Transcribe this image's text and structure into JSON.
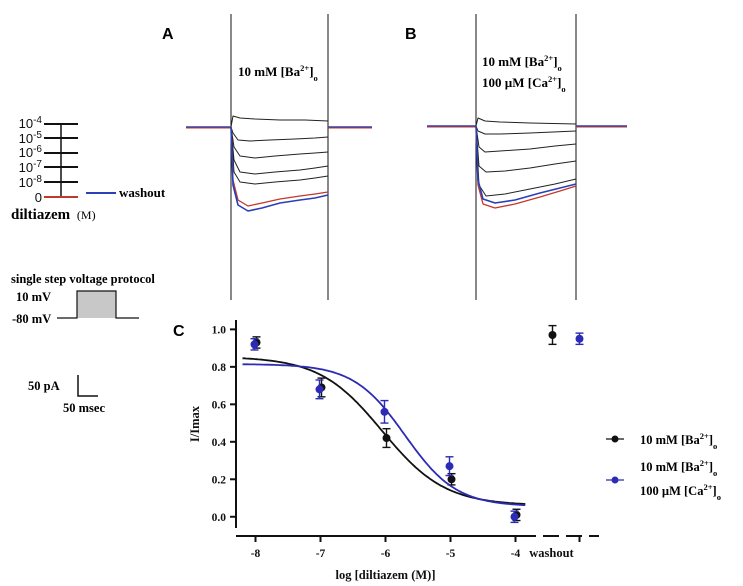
{
  "figure": {
    "panel_labels": {
      "a": "A",
      "b": "B",
      "c": "C"
    },
    "panel_a": {
      "condition_line1": "10 mM [Ba2+]o"
    },
    "panel_b": {
      "condition_line1": "10 mM [Ba2+]o",
      "condition_line2": "100 µM [Ca2+]o"
    },
    "dose_legend": {
      "concentrations": [
        "10-4",
        "10-5",
        "10-6",
        "10-7",
        "10-8",
        "0"
      ],
      "washout_label": "washout",
      "axis_title": "diltiazem",
      "axis_unit": "(M)"
    },
    "protocol": {
      "title": "single step voltage protocol",
      "step_voltage": "10 mV",
      "holding_voltage": "-80 mV"
    },
    "scale_bar": {
      "current": "50 pA",
      "time": "50 msec"
    },
    "colors": {
      "ba_only": "#111111",
      "ba_ca": "#2b2bb5",
      "washout_trace": "#2a3fb8",
      "control_trace": "#c0392b",
      "pulse_fill": "#c8c8c8"
    }
  },
  "chart_data": {
    "type": "scatter",
    "title": "",
    "xlabel": "log [diltiazem (M)]",
    "ylabel": "I/Imax",
    "xlim": [
      -8.3,
      -2.7
    ],
    "ylim": [
      -0.06,
      1.05
    ],
    "x_ticks": [
      -8,
      -7,
      -6,
      -5,
      -4
    ],
    "y_ticks": [
      0.0,
      0.2,
      0.4,
      0.6,
      0.8,
      1.0
    ],
    "y_tick_labels": [
      "0.0",
      "0.2",
      "0.4",
      "0.6",
      "0.8",
      "1.0"
    ],
    "washout_label": "washout",
    "series": [
      {
        "name": "10 mM [Ba2+]o",
        "color": "#111111",
        "x": [
          -8,
          -7,
          -6,
          -5,
          -4
        ],
        "y": [
          0.93,
          0.69,
          0.42,
          0.2,
          0.01
        ],
        "err": [
          0.03,
          0.05,
          0.05,
          0.03,
          0.03
        ],
        "washout": {
          "y": 0.97,
          "err": 0.05
        },
        "fit": {
          "top": 0.855,
          "bottom": 0.06,
          "log_ic50": -6.05,
          "hill": 0.9
        }
      },
      {
        "name": "10 mM [Ba2+]o + 100 µM [Ca2+]o",
        "color": "#2b2bb5",
        "x": [
          -8,
          -7,
          -6,
          -5,
          -4
        ],
        "y": [
          0.92,
          0.68,
          0.56,
          0.27,
          0.0
        ],
        "err": [
          0.03,
          0.05,
          0.06,
          0.05,
          0.03
        ],
        "washout": {
          "y": 0.95,
          "err": 0.03
        },
        "fit": {
          "top": 0.815,
          "bottom": 0.055,
          "log_ic50": -5.7,
          "hill": 1.1
        }
      }
    ]
  }
}
